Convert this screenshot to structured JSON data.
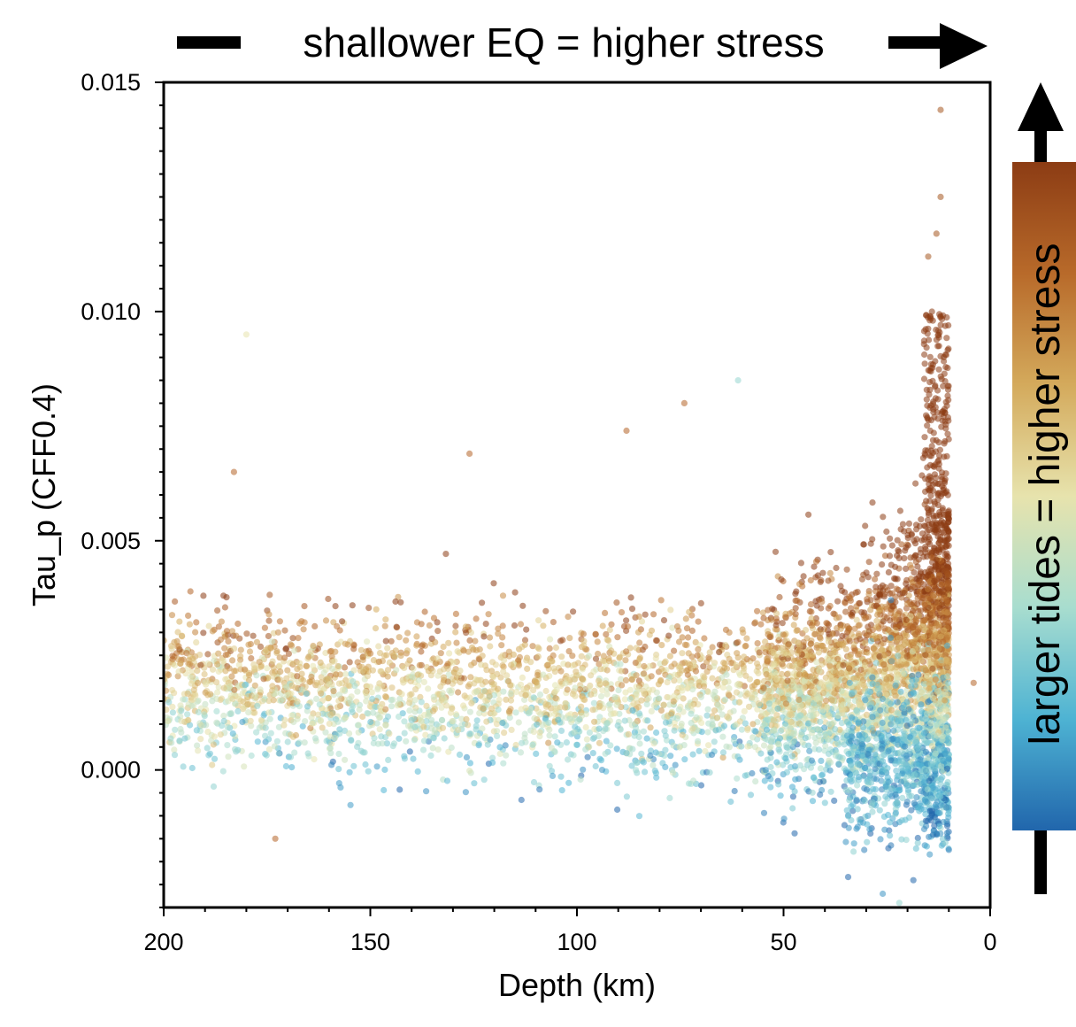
{
  "chart_data": {
    "type": "scatter",
    "title": "shallower EQ = higher stress",
    "xlabel": "Depth (km)",
    "ylabel": "Tau_p (CFF0.4)",
    "colorbar_label": "larger tides = higher stress",
    "xlim": [
      200,
      0
    ],
    "ylim": [
      -0.003,
      0.015
    ],
    "x_reversed": true,
    "grid": false,
    "legend": "none",
    "x_ticks": [
      200,
      150,
      100,
      50,
      0
    ],
    "x_tick_labels": [
      "200",
      "150",
      "100",
      "50",
      "0"
    ],
    "y_ticks": [
      0.0,
      0.005,
      0.01,
      0.015
    ],
    "y_tick_labels": [
      "0.000",
      "0.005",
      "0.010",
      "0.015"
    ],
    "colormap": [
      "#2166ac",
      "#4eb3d3",
      "#a8ddcf",
      "#e7e3ad",
      "#d4aa5c",
      "#b86a2a",
      "#8c3c14"
    ],
    "point_opacity": 0.55,
    "trend": {
      "depth": [
        200,
        150,
        100,
        60,
        40,
        25,
        15,
        10
      ],
      "median_tau": [
        0.0018,
        0.0017,
        0.0016,
        0.0016,
        0.0017,
        0.002,
        0.0026,
        0.003
      ],
      "spread_tau": [
        0.0013,
        0.0013,
        0.0013,
        0.0014,
        0.0017,
        0.0021,
        0.0026,
        0.0028
      ]
    },
    "outliers": [
      {
        "x": 180,
        "y": 0.0095,
        "c": 0.5
      },
      {
        "x": 183,
        "y": 0.0065,
        "c": 0.85
      },
      {
        "x": 126,
        "y": 0.0069,
        "c": 0.85
      },
      {
        "x": 88,
        "y": 0.0074,
        "c": 0.85
      },
      {
        "x": 74,
        "y": 0.008,
        "c": 0.85
      },
      {
        "x": 61,
        "y": 0.0085,
        "c": 0.3
      },
      {
        "x": 12,
        "y": 0.0144,
        "c": 0.9
      },
      {
        "x": 12,
        "y": 0.0125,
        "c": 0.9
      },
      {
        "x": 13,
        "y": 0.0117,
        "c": 0.9
      },
      {
        "x": 15,
        "y": 0.0112,
        "c": 0.9
      },
      {
        "x": 173,
        "y": -0.0015,
        "c": 0.85
      },
      {
        "x": 22,
        "y": -0.0029,
        "c": 0.3
      },
      {
        "x": 26,
        "y": -0.0027,
        "c": 0.1
      },
      {
        "x": 4,
        "y": 0.0019,
        "c": 0.85
      }
    ]
  }
}
